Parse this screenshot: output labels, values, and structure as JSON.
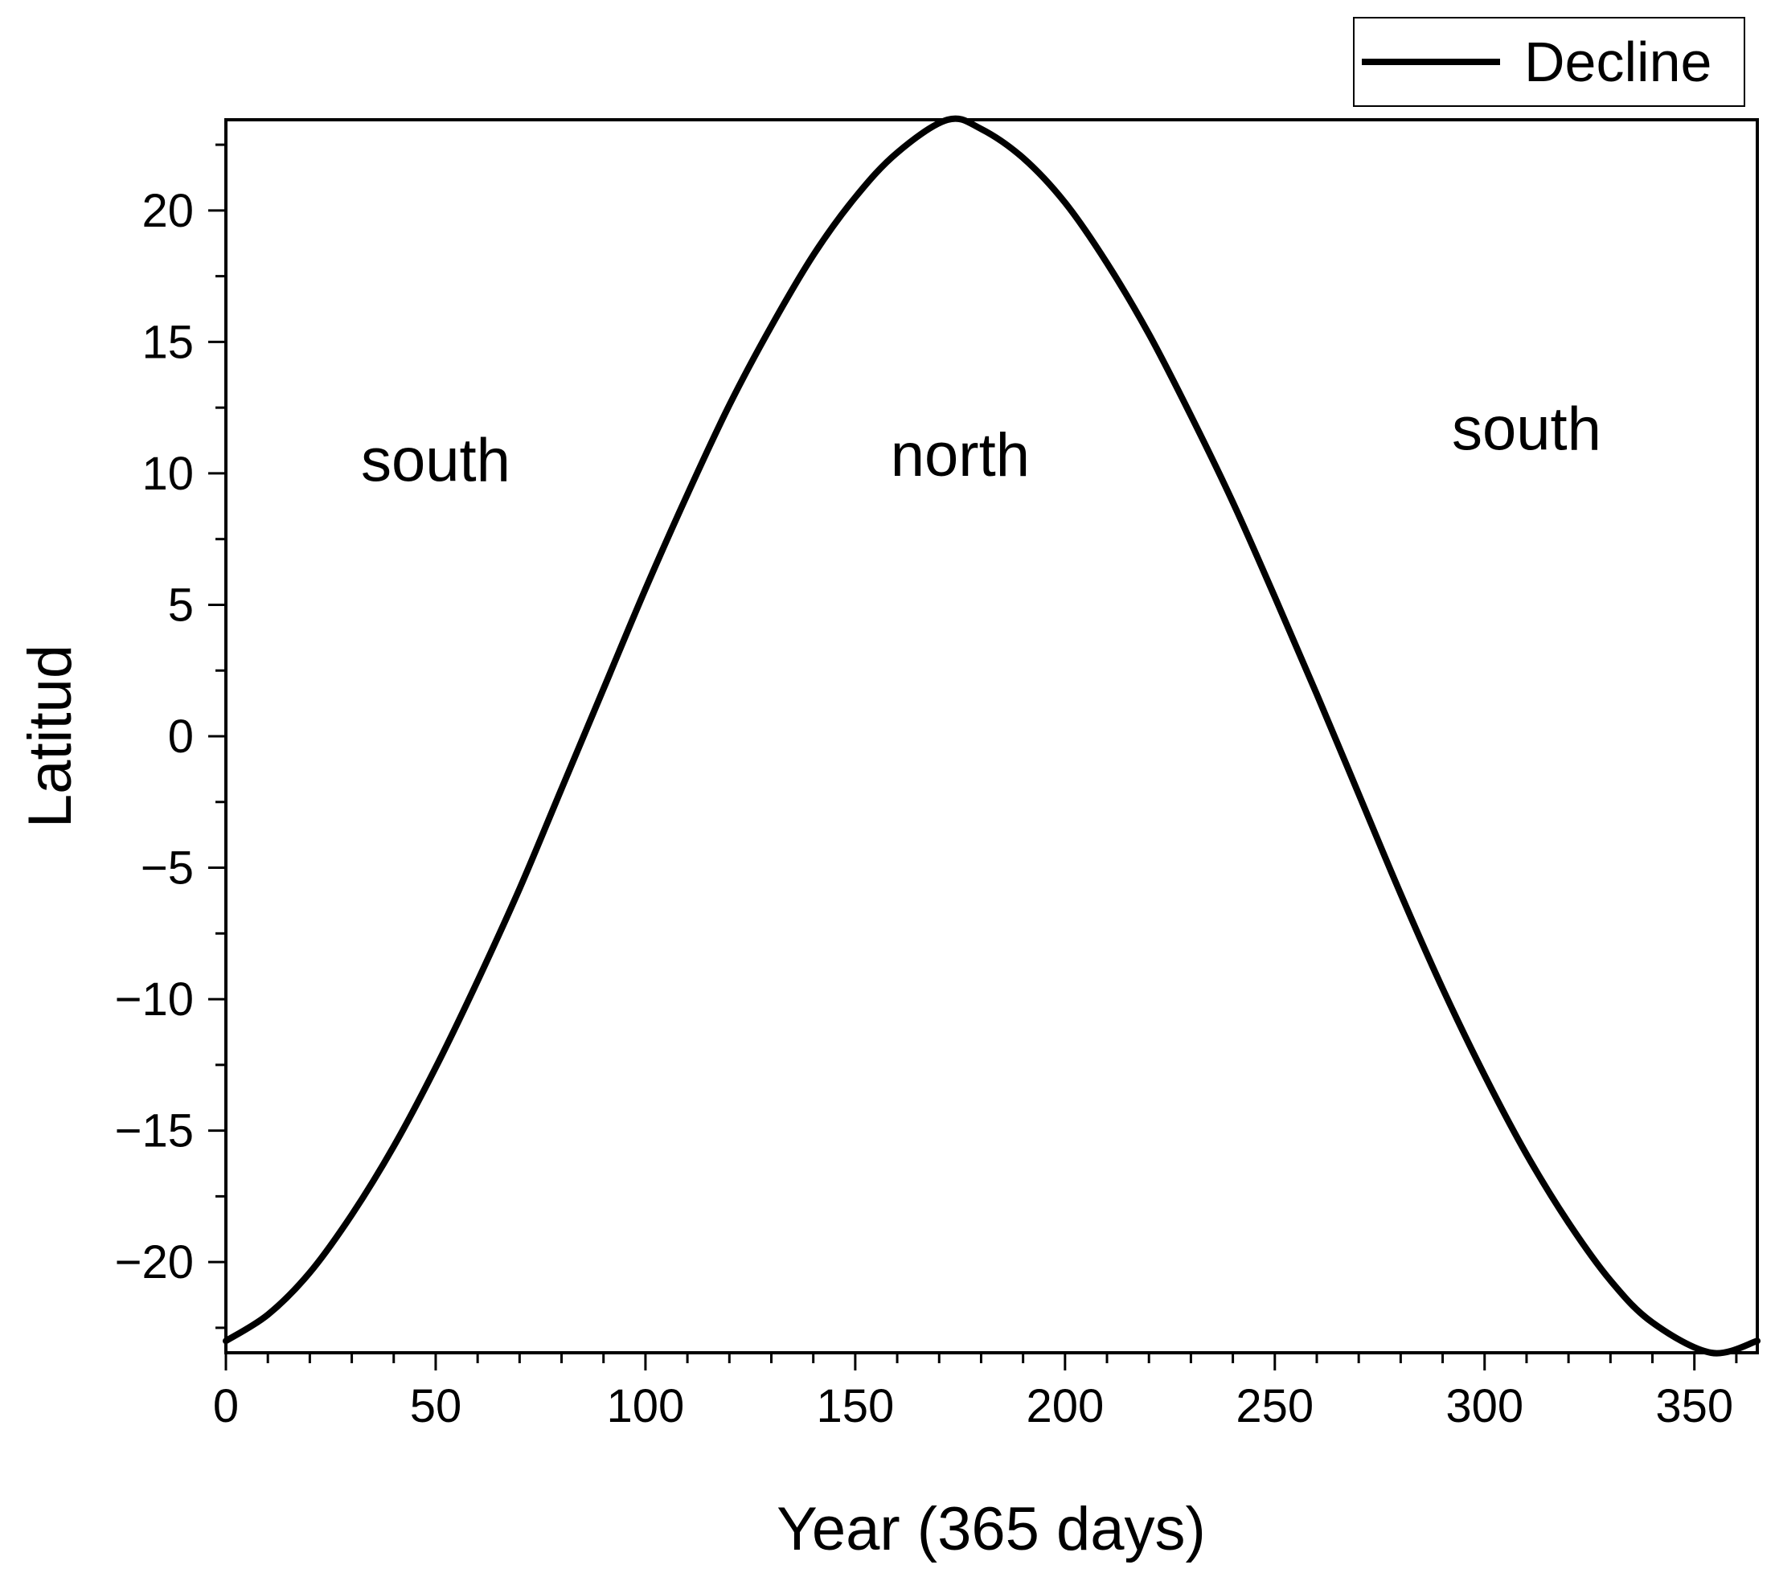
{
  "chart_data": {
    "type": "line",
    "title": "",
    "xlabel": "Year (365 days)",
    "ylabel": "Latitud",
    "xlim": [
      0,
      365
    ],
    "ylim": [
      -23.45,
      23.45
    ],
    "x_ticks": [
      0,
      50,
      100,
      150,
      200,
      250,
      300,
      350
    ],
    "x_tick_labels": [
      "0",
      "50",
      "100",
      "150",
      "200",
      "250",
      "300",
      "350"
    ],
    "x_minor_step": 10,
    "y_ticks": [
      -20,
      -15,
      -10,
      -5,
      0,
      5,
      10,
      15,
      20
    ],
    "y_tick_labels": [
      "−20",
      "−15",
      "−10",
      "−5",
      "0",
      "5",
      "10",
      "15",
      "20"
    ],
    "y_minor_step": 2.5,
    "grid": false,
    "legend": {
      "position": "top-right, outside plot",
      "entries": [
        "Decline"
      ]
    },
    "series": [
      {
        "name": "Decline",
        "color": "#000000",
        "x": [
          0,
          10,
          20,
          30,
          40,
          50,
          60,
          70,
          80,
          90,
          100,
          110,
          120,
          130,
          140,
          150,
          160,
          172,
          180,
          190,
          200,
          210,
          220,
          230,
          240,
          250,
          260,
          270,
          280,
          290,
          300,
          310,
          320,
          330,
          340,
          354,
          365
        ],
        "values": [
          -23.0,
          -22.0,
          -20.4,
          -18.2,
          -15.6,
          -12.6,
          -9.3,
          -5.8,
          -2.0,
          1.8,
          5.6,
          9.2,
          12.6,
          15.6,
          18.3,
          20.5,
          22.2,
          23.45,
          23.1,
          22.0,
          20.3,
          18.0,
          15.3,
          12.2,
          8.9,
          5.3,
          1.6,
          -2.2,
          -6.0,
          -9.6,
          -12.9,
          -15.9,
          -18.5,
          -20.7,
          -22.3,
          -23.45,
          -23.0
        ]
      }
    ],
    "annotations": [
      {
        "text": "south",
        "x": 50,
        "y": 9.7
      },
      {
        "text": "north",
        "x": 175,
        "y": 9.9
      },
      {
        "text": "south",
        "x": 310,
        "y": 10.9
      }
    ]
  }
}
